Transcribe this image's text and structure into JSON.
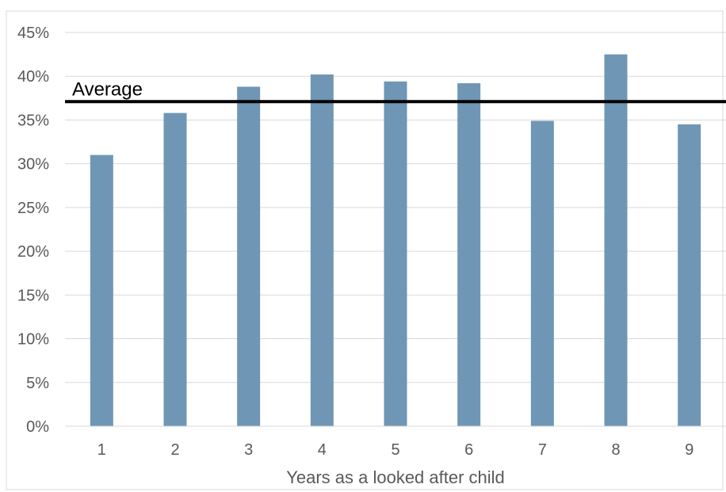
{
  "chart_data": {
    "type": "bar",
    "categories": [
      "1",
      "2",
      "3",
      "4",
      "5",
      "6",
      "7",
      "8",
      "9"
    ],
    "values": [
      0.31,
      0.358,
      0.388,
      0.402,
      0.394,
      0.392,
      0.349,
      0.425,
      0.345
    ],
    "title": "",
    "xlabel": "Years as a looked after child",
    "ylabel": "",
    "ylim": [
      0,
      0.45
    ],
    "yticks": [
      {
        "value": 0,
        "label": "0%"
      },
      {
        "value": 0.05,
        "label": "5%"
      },
      {
        "value": 0.1,
        "label": "10%"
      },
      {
        "value": 0.15,
        "label": "15%"
      },
      {
        "value": 0.2,
        "label": "20%"
      },
      {
        "value": 0.25,
        "label": "25%"
      },
      {
        "value": 0.3,
        "label": "30%"
      },
      {
        "value": 0.35,
        "label": "35%"
      },
      {
        "value": 0.4,
        "label": "40%"
      },
      {
        "value": 0.45,
        "label": "45%"
      }
    ],
    "grid": true,
    "reference_line": {
      "label": "Average",
      "value": 0.371
    },
    "colors": {
      "bar": "#6f96b5",
      "grid": "#d9d9d9",
      "reference_line": "#000000",
      "axis_text": "#595959"
    }
  }
}
